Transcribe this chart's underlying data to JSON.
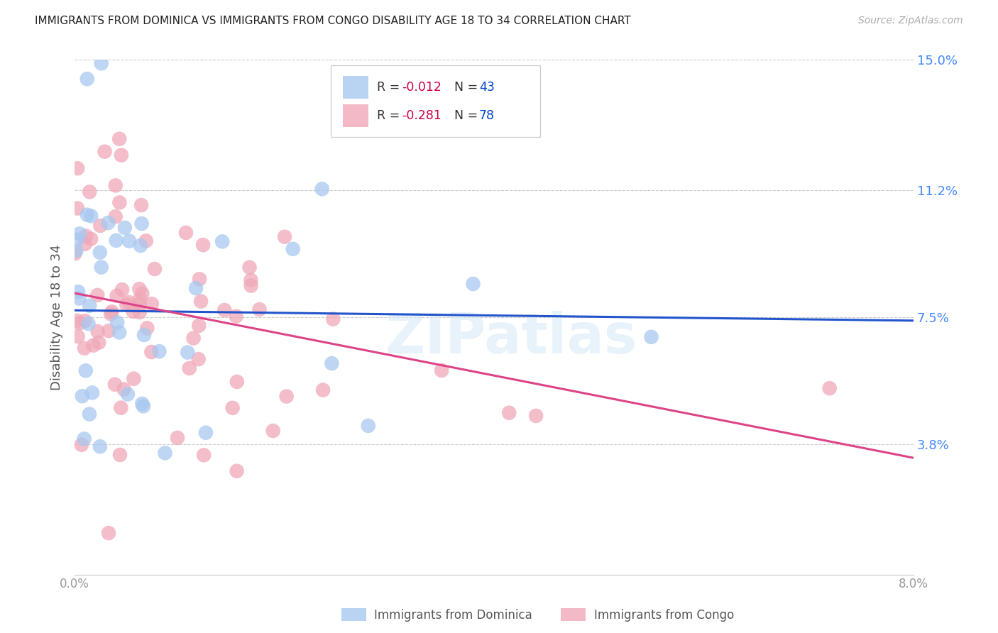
{
  "title": "IMMIGRANTS FROM DOMINICA VS IMMIGRANTS FROM CONGO DISABILITY AGE 18 TO 34 CORRELATION CHART",
  "source": "Source: ZipAtlas.com",
  "ylabel": "Disability Age 18 to 34",
  "xlim": [
    0.0,
    0.08
  ],
  "ylim": [
    0.0,
    0.15
  ],
  "xticks": [
    0.0,
    0.01,
    0.02,
    0.03,
    0.04,
    0.05,
    0.06,
    0.07,
    0.08
  ],
  "xticklabels": [
    "0.0%",
    "",
    "",
    "",
    "",
    "",
    "",
    "",
    "8.0%"
  ],
  "ytick_positions": [
    0.0,
    0.038,
    0.075,
    0.112,
    0.15
  ],
  "yticklabels_right": [
    "",
    "3.8%",
    "7.5%",
    "11.2%",
    "15.0%"
  ],
  "dominica_color": "#a8c8f0",
  "congo_color": "#f0a8b8",
  "dominica_line_color": "#2255cc",
  "congo_line_color": "#dd4488",
  "right_axis_color": "#4488ff",
  "watermark": "ZIPatlas",
  "background_color": "#ffffff",
  "grid_color": "#cccccc",
  "title_color": "#222222",
  "r_color": "#cc0044",
  "n_color": "#0044cc",
  "dominica_R": -0.012,
  "dominica_N": 43,
  "congo_R": -0.281,
  "congo_N": 78,
  "dom_line_y0": 0.077,
  "dom_line_y1": 0.074,
  "con_line_y0": 0.082,
  "con_line_y1": 0.034,
  "seed": 42
}
